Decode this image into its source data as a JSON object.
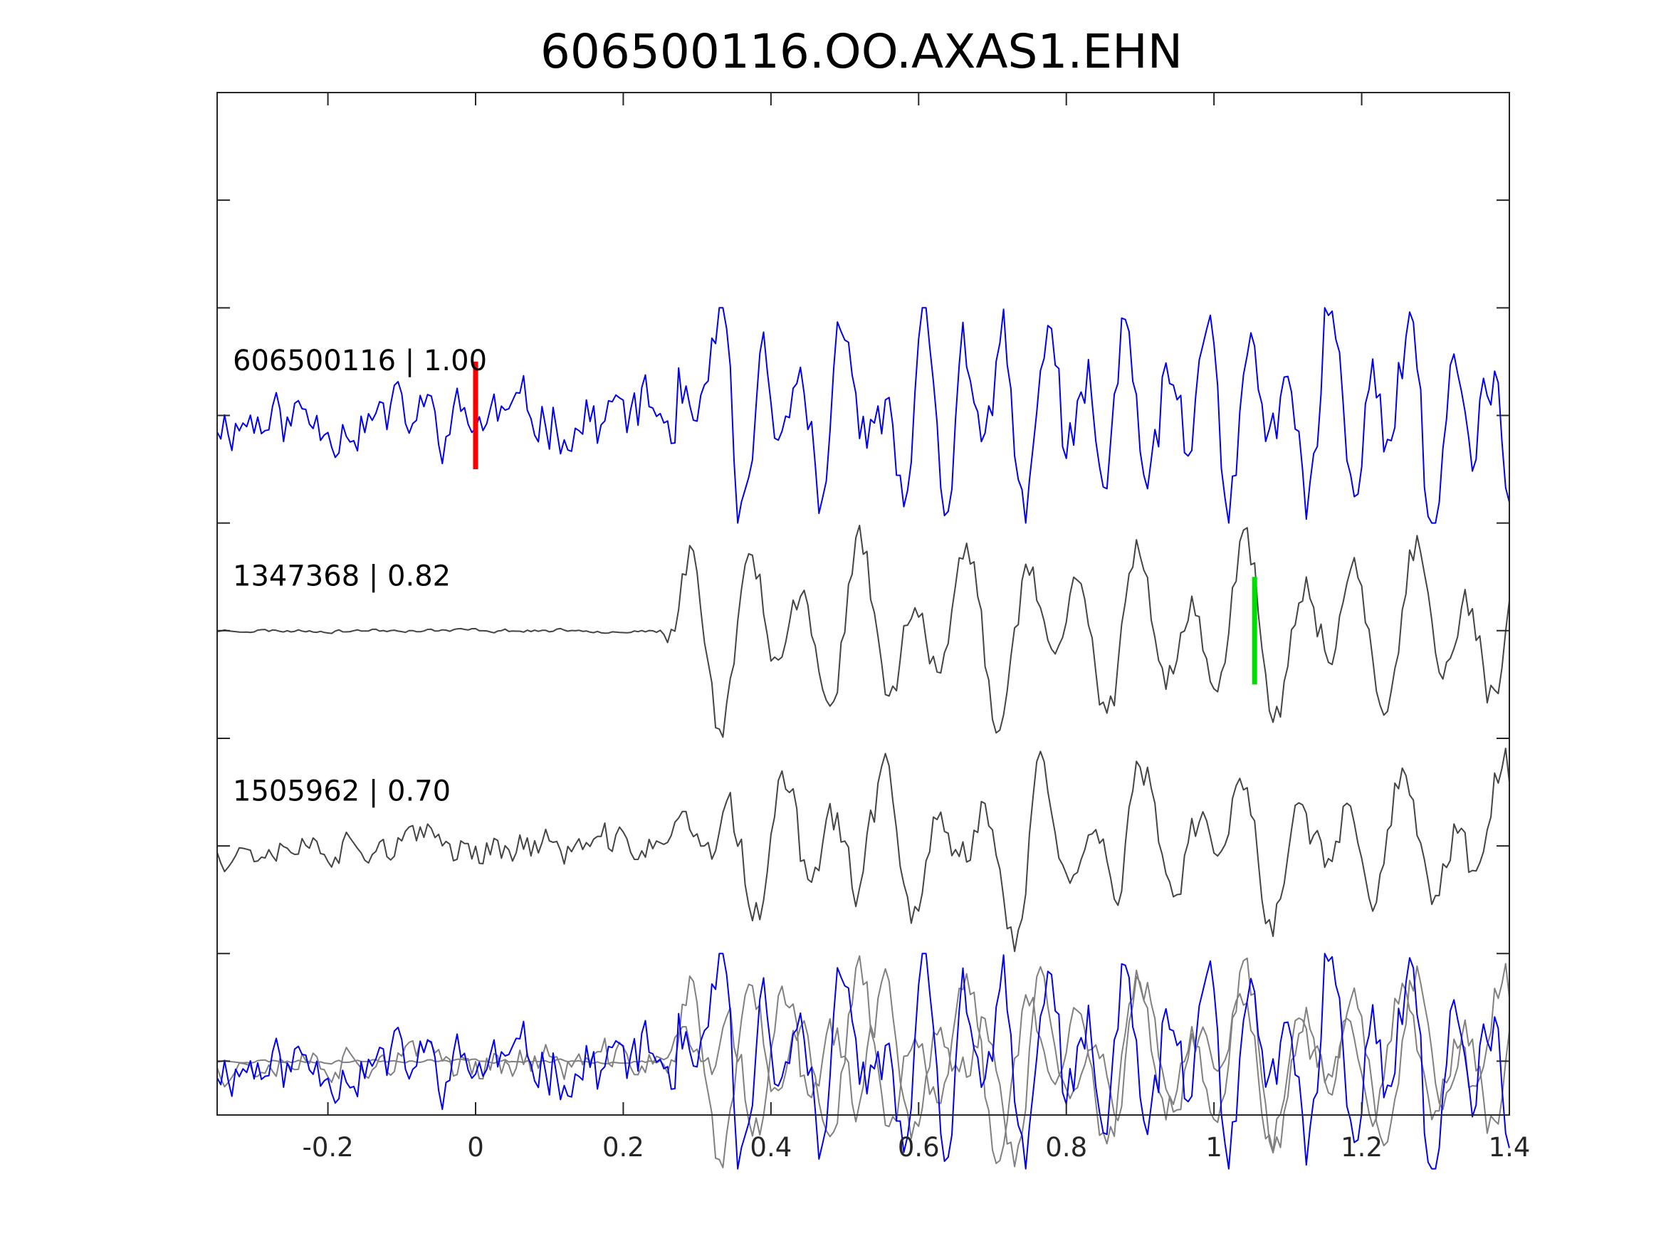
{
  "chart_data": {
    "type": "line",
    "title": "606500116.OO.AXAS1.EHN",
    "xlabel": "",
    "ylabel": "",
    "xlim": [
      -0.35,
      1.4
    ],
    "ylim": [
      -4.5,
      5.0
    ],
    "xticks": [
      {
        "value": -0.2,
        "label": "-0.2"
      },
      {
        "value": 0,
        "label": "0"
      },
      {
        "value": 0.2,
        "label": "0.2"
      },
      {
        "value": 0.4,
        "label": "0.4"
      },
      {
        "value": 0.6,
        "label": "0.6"
      },
      {
        "value": 0.8,
        "label": "0.8"
      },
      {
        "value": 1,
        "label": "1"
      },
      {
        "value": 1.2,
        "label": "1.2"
      },
      {
        "value": 1.4,
        "label": "1.4"
      }
    ],
    "yticks": [
      -4,
      -3,
      -2,
      -1,
      0,
      1,
      2,
      3,
      4
    ],
    "show_ytick_labels": false,
    "grid": false,
    "sample_interval": 0.005,
    "traces": [
      {
        "label": "606500116 | 1.00",
        "offset": 2,
        "color": "#0000ee",
        "seed": 11,
        "noise_amp": 0.35,
        "onset": 0.25,
        "signal_amp": 0.9,
        "period": 0.055
      },
      {
        "label": "1347368 | 0.82",
        "offset": 0,
        "color": "#444444",
        "seed": 23,
        "noise_amp": 0.02,
        "onset": 0.25,
        "signal_amp": 0.85,
        "period": 0.075
      },
      {
        "label": "1505962 | 0.70",
        "offset": -2,
        "color": "#444444",
        "seed": 37,
        "noise_amp": 0.2,
        "onset": 0.25,
        "signal_amp": 0.7,
        "period": 0.07
      }
    ],
    "overlay": {
      "offset": -4,
      "primary_color": "#0000ee",
      "other_color": "#808080"
    },
    "picks": [
      {
        "x": 0.0,
        "center": 2,
        "half_height": 0.5,
        "color": "#ff0000"
      },
      {
        "x": 1.055,
        "center": 0,
        "half_height": 0.5,
        "color": "#00dd00"
      }
    ]
  }
}
